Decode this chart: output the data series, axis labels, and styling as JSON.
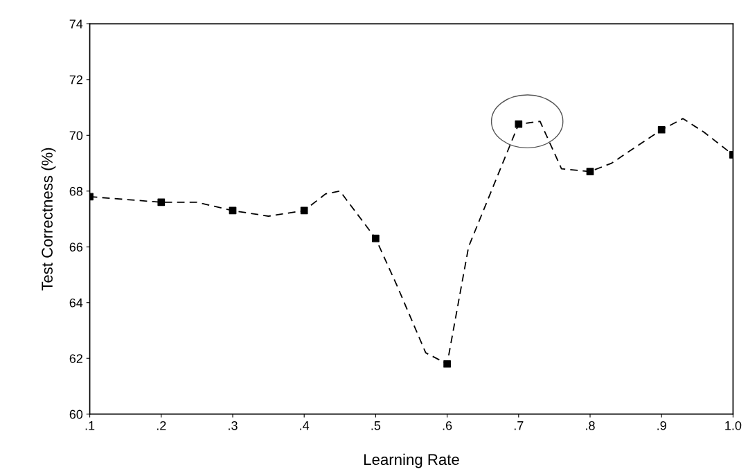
{
  "chart_data": {
    "type": "line",
    "xlabel": "Learning Rate",
    "ylabel": "Test Correctness (%)",
    "xlim": [
      0.1,
      1.0
    ],
    "ylim": [
      60,
      74
    ],
    "xticks": [
      {
        "value": 0.1,
        "label": ".1"
      },
      {
        "value": 0.2,
        "label": ".2"
      },
      {
        "value": 0.3,
        "label": ".3"
      },
      {
        "value": 0.4,
        "label": ".4"
      },
      {
        "value": 0.5,
        "label": ".5"
      },
      {
        "value": 0.6,
        "label": ".6"
      },
      {
        "value": 0.7,
        "label": ".7"
      },
      {
        "value": 0.8,
        "label": ".8"
      },
      {
        "value": 0.9,
        "label": ".9"
      },
      {
        "value": 1.0,
        "label": "1.0"
      }
    ],
    "yticks": [
      60,
      62,
      64,
      66,
      68,
      70,
      72,
      74
    ],
    "grid": false,
    "series": [
      {
        "color": "#000000",
        "line_style": "dashed",
        "marker": "none",
        "x": [
          0.1,
          0.2,
          0.25,
          0.3,
          0.35,
          0.4,
          0.43,
          0.45,
          0.5,
          0.53,
          0.57,
          0.6,
          0.63,
          0.7,
          0.73,
          0.76,
          0.8,
          0.83,
          0.9,
          0.93,
          0.96,
          1.0
        ],
        "values": [
          67.8,
          67.6,
          67.6,
          67.3,
          67.1,
          67.3,
          67.9,
          68.0,
          66.3,
          64.6,
          62.2,
          61.8,
          66.0,
          70.4,
          70.5,
          68.8,
          68.7,
          69.0,
          70.2,
          70.6,
          70.1,
          69.3
        ]
      },
      {
        "type": "scatter",
        "color": "#000000",
        "marker": "square",
        "x": [
          0.1,
          0.2,
          0.3,
          0.4,
          0.5,
          0.6,
          0.7,
          0.8,
          0.9,
          1.0
        ],
        "values": [
          67.8,
          67.6,
          67.3,
          67.3,
          66.3,
          61.8,
          70.4,
          68.7,
          70.2,
          69.3
        ]
      }
    ]
  }
}
